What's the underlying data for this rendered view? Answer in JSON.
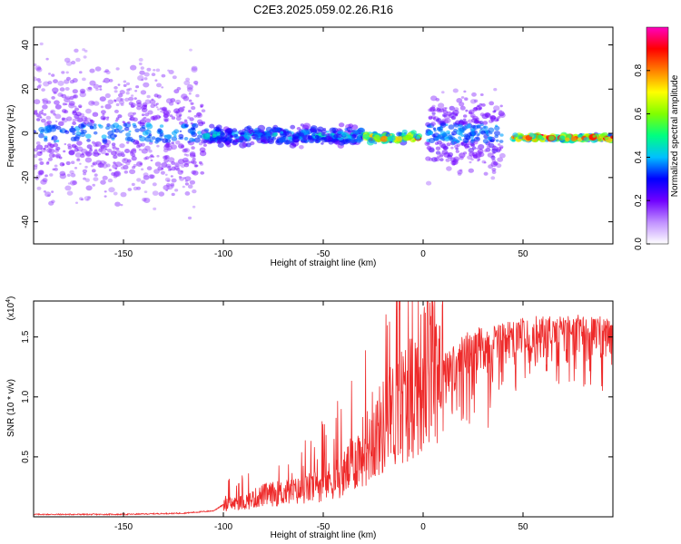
{
  "title": "C2E3.2025.059.02.26.R16",
  "chart_data": [
    {
      "type": "heatmap",
      "name": "spectrogram",
      "xlabel": "Height of straight line (km)",
      "ylabel": "Frequency (Hz)",
      "xlim": [
        -195,
        95
      ],
      "ylim": [
        -50,
        48
      ],
      "xticks": [
        -150,
        -100,
        -50,
        0,
        50
      ],
      "yticks": [
        -40,
        -20,
        0,
        20,
        40
      ],
      "colorbar": {
        "label": "Normalized spectral amplitude",
        "range": [
          0.0,
          1.0
        ],
        "ticks": [
          0.0,
          0.2,
          0.4,
          0.6,
          0.8
        ],
        "colors": [
          "#ffffff",
          "#c090ff",
          "#7000ff",
          "#0000ff",
          "#00c0ff",
          "#00ff80",
          "#80ff00",
          "#ffff00",
          "#ff8000",
          "#ff0000",
          "#ff00c0"
        ]
      },
      "features": [
        {
          "x_range": [
            -195,
            -110
          ],
          "freq_center": 0,
          "spread_hz": 45,
          "amplitude": 0.15
        },
        {
          "x_range": [
            -110,
            -30
          ],
          "freq_center": -1,
          "spread_hz": 6,
          "amplitude": 0.4
        },
        {
          "x_range": [
            -30,
            -2
          ],
          "freq_center": -2,
          "spread_hz": 3,
          "amplitude": 0.85
        },
        {
          "x_range": [
            2,
            40
          ],
          "freq_center": 0,
          "spread_hz": 25,
          "amplitude": 0.2
        },
        {
          "x_range": [
            45,
            95
          ],
          "freq_center": -2,
          "spread_hz": 2,
          "amplitude": 0.95
        }
      ]
    },
    {
      "type": "line",
      "name": "snr",
      "xlabel": "Height of straight line (km)",
      "ylabel": "SNR (10 * v/v)",
      "scale_label": "(x10",
      "scale_exponent": "4",
      "xlim": [
        -195,
        95
      ],
      "ylim": [
        0,
        1.8
      ],
      "xticks": [
        -150,
        -100,
        -50,
        0,
        50
      ],
      "yticks": [
        0.5,
        1.0,
        1.5
      ],
      "ytick_labels": [
        "0.5",
        "1.0",
        "1.5"
      ],
      "color": "#ee2a2a",
      "series": [
        {
          "name": "SNR",
          "x": [
            -195,
            -150,
            -120,
            -105,
            -100,
            -90,
            -80,
            -70,
            -60,
            -50,
            -40,
            -30,
            -20,
            -10,
            0,
            10,
            20,
            30,
            40,
            50,
            60,
            70,
            80,
            90,
            95
          ],
          "y": [
            0.02,
            0.02,
            0.03,
            0.05,
            0.1,
            0.12,
            0.18,
            0.2,
            0.22,
            0.28,
            0.35,
            0.55,
            0.75,
            0.95,
            1.15,
            1.35,
            1.5,
            1.58,
            1.62,
            1.66,
            1.67,
            1.66,
            1.67,
            1.66,
            1.64
          ]
        }
      ]
    }
  ]
}
